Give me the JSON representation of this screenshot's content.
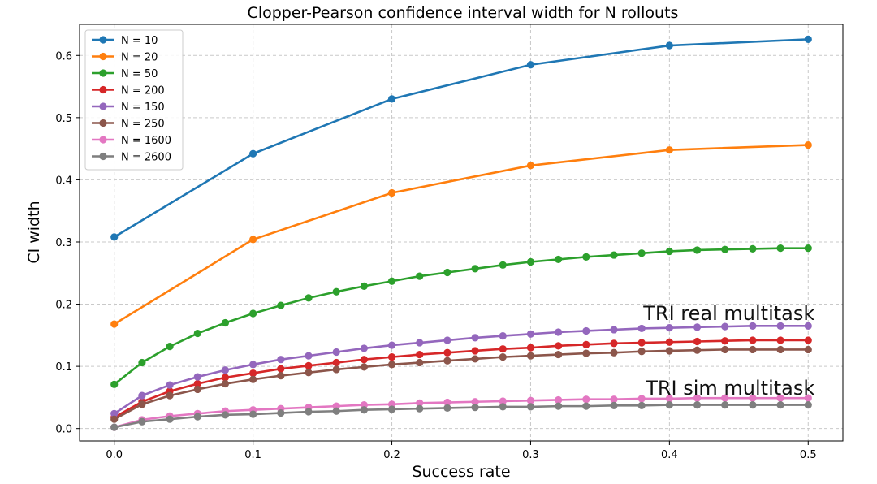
{
  "chart_data": {
    "type": "line",
    "title": "Clopper-Pearson confidence interval width for N rollouts",
    "xlabel": "Success rate",
    "ylabel": "CI width",
    "xlim": [
      -0.025,
      0.525
    ],
    "ylim": [
      -0.02,
      0.65
    ],
    "xticks": [
      0.0,
      0.1,
      0.2,
      0.3,
      0.4,
      0.5
    ],
    "xtick_labels": [
      "0.0",
      "0.1",
      "0.2",
      "0.3",
      "0.4",
      "0.5"
    ],
    "yticks": [
      0.0,
      0.1,
      0.2,
      0.3,
      0.4,
      0.5,
      0.6
    ],
    "ytick_labels": [
      "0.0",
      "0.1",
      "0.2",
      "0.3",
      "0.4",
      "0.5",
      "0.6"
    ],
    "grid": true,
    "legend_position": "top-left",
    "series": [
      {
        "name": "N = 10",
        "color": "#1f77b4",
        "x": [
          0.0,
          0.1,
          0.2,
          0.3,
          0.4,
          0.5
        ],
        "y": [
          0.308,
          0.442,
          0.53,
          0.585,
          0.616,
          0.626
        ]
      },
      {
        "name": "N = 20",
        "color": "#ff7f0e",
        "x": [
          0.0,
          0.1,
          0.2,
          0.3,
          0.4,
          0.5
        ],
        "y": [
          0.168,
          0.304,
          0.379,
          0.423,
          0.448,
          0.456
        ]
      },
      {
        "name": "N = 50",
        "color": "#2ca02c",
        "x": [
          0.0,
          0.02,
          0.04,
          0.06,
          0.08,
          0.1,
          0.12,
          0.14,
          0.16,
          0.18,
          0.2,
          0.22,
          0.24,
          0.26,
          0.28,
          0.3,
          0.32,
          0.34,
          0.36,
          0.38,
          0.4,
          0.42,
          0.44,
          0.46,
          0.48,
          0.5
        ],
        "y": [
          0.071,
          0.106,
          0.132,
          0.153,
          0.17,
          0.185,
          0.198,
          0.21,
          0.22,
          0.229,
          0.237,
          0.245,
          0.251,
          0.257,
          0.263,
          0.268,
          0.272,
          0.276,
          0.279,
          0.282,
          0.285,
          0.287,
          0.288,
          0.289,
          0.29,
          0.29
        ]
      },
      {
        "name": "N = 200",
        "color": "#d62728",
        "x": [
          0.0,
          0.02,
          0.04,
          0.06,
          0.08,
          0.1,
          0.12,
          0.14,
          0.16,
          0.18,
          0.2,
          0.22,
          0.24,
          0.26,
          0.28,
          0.3,
          0.32,
          0.34,
          0.36,
          0.38,
          0.4,
          0.42,
          0.44,
          0.46,
          0.48,
          0.5
        ],
        "y": [
          0.018,
          0.043,
          0.06,
          0.072,
          0.082,
          0.089,
          0.096,
          0.101,
          0.106,
          0.111,
          0.115,
          0.119,
          0.122,
          0.125,
          0.128,
          0.13,
          0.133,
          0.135,
          0.137,
          0.138,
          0.139,
          0.14,
          0.141,
          0.142,
          0.142,
          0.142
        ]
      },
      {
        "name": "N = 150",
        "color": "#9467bd",
        "x": [
          0.0,
          0.02,
          0.04,
          0.06,
          0.08,
          0.1,
          0.12,
          0.14,
          0.16,
          0.18,
          0.2,
          0.22,
          0.24,
          0.26,
          0.28,
          0.3,
          0.32,
          0.34,
          0.36,
          0.38,
          0.4,
          0.42,
          0.44,
          0.46,
          0.48,
          0.5
        ],
        "y": [
          0.024,
          0.053,
          0.07,
          0.083,
          0.094,
          0.103,
          0.111,
          0.117,
          0.123,
          0.129,
          0.134,
          0.138,
          0.142,
          0.146,
          0.149,
          0.152,
          0.155,
          0.157,
          0.159,
          0.161,
          0.162,
          0.163,
          0.164,
          0.165,
          0.165,
          0.165
        ]
      },
      {
        "name": "N = 250",
        "color": "#8c564b",
        "x": [
          0.0,
          0.02,
          0.04,
          0.06,
          0.08,
          0.1,
          0.12,
          0.14,
          0.16,
          0.18,
          0.2,
          0.22,
          0.24,
          0.26,
          0.28,
          0.3,
          0.32,
          0.34,
          0.36,
          0.38,
          0.4,
          0.42,
          0.44,
          0.46,
          0.48,
          0.5
        ],
        "y": [
          0.015,
          0.039,
          0.053,
          0.063,
          0.072,
          0.079,
          0.085,
          0.09,
          0.095,
          0.099,
          0.103,
          0.106,
          0.109,
          0.112,
          0.115,
          0.117,
          0.119,
          0.121,
          0.122,
          0.124,
          0.125,
          0.126,
          0.127,
          0.127,
          0.127,
          0.127
        ]
      },
      {
        "name": "N = 1600",
        "color": "#e377c2",
        "x": [
          0.0,
          0.02,
          0.04,
          0.06,
          0.08,
          0.1,
          0.12,
          0.14,
          0.16,
          0.18,
          0.2,
          0.22,
          0.24,
          0.26,
          0.28,
          0.3,
          0.32,
          0.34,
          0.36,
          0.38,
          0.4,
          0.42,
          0.44,
          0.46,
          0.48,
          0.5
        ],
        "y": [
          0.002,
          0.014,
          0.02,
          0.024,
          0.028,
          0.03,
          0.032,
          0.034,
          0.036,
          0.038,
          0.039,
          0.041,
          0.042,
          0.043,
          0.044,
          0.045,
          0.046,
          0.047,
          0.047,
          0.048,
          0.048,
          0.049,
          0.049,
          0.049,
          0.049,
          0.049
        ]
      },
      {
        "name": "N = 2600",
        "color": "#7f7f7f",
        "x": [
          0.0,
          0.02,
          0.04,
          0.06,
          0.08,
          0.1,
          0.12,
          0.14,
          0.16,
          0.18,
          0.2,
          0.22,
          0.24,
          0.26,
          0.28,
          0.3,
          0.32,
          0.34,
          0.36,
          0.38,
          0.4,
          0.42,
          0.44,
          0.46,
          0.48,
          0.5
        ],
        "y": [
          0.002,
          0.011,
          0.015,
          0.019,
          0.022,
          0.023,
          0.025,
          0.027,
          0.028,
          0.03,
          0.031,
          0.032,
          0.033,
          0.034,
          0.035,
          0.035,
          0.036,
          0.036,
          0.037,
          0.037,
          0.038,
          0.038,
          0.038,
          0.038,
          0.038,
          0.038
        ]
      }
    ],
    "annotations": [
      {
        "text": "TRI real multitask",
        "x": 0.5,
        "y": 0.185
      },
      {
        "text": "TRI sim multitask",
        "x": 0.5,
        "y": 0.065
      }
    ]
  }
}
